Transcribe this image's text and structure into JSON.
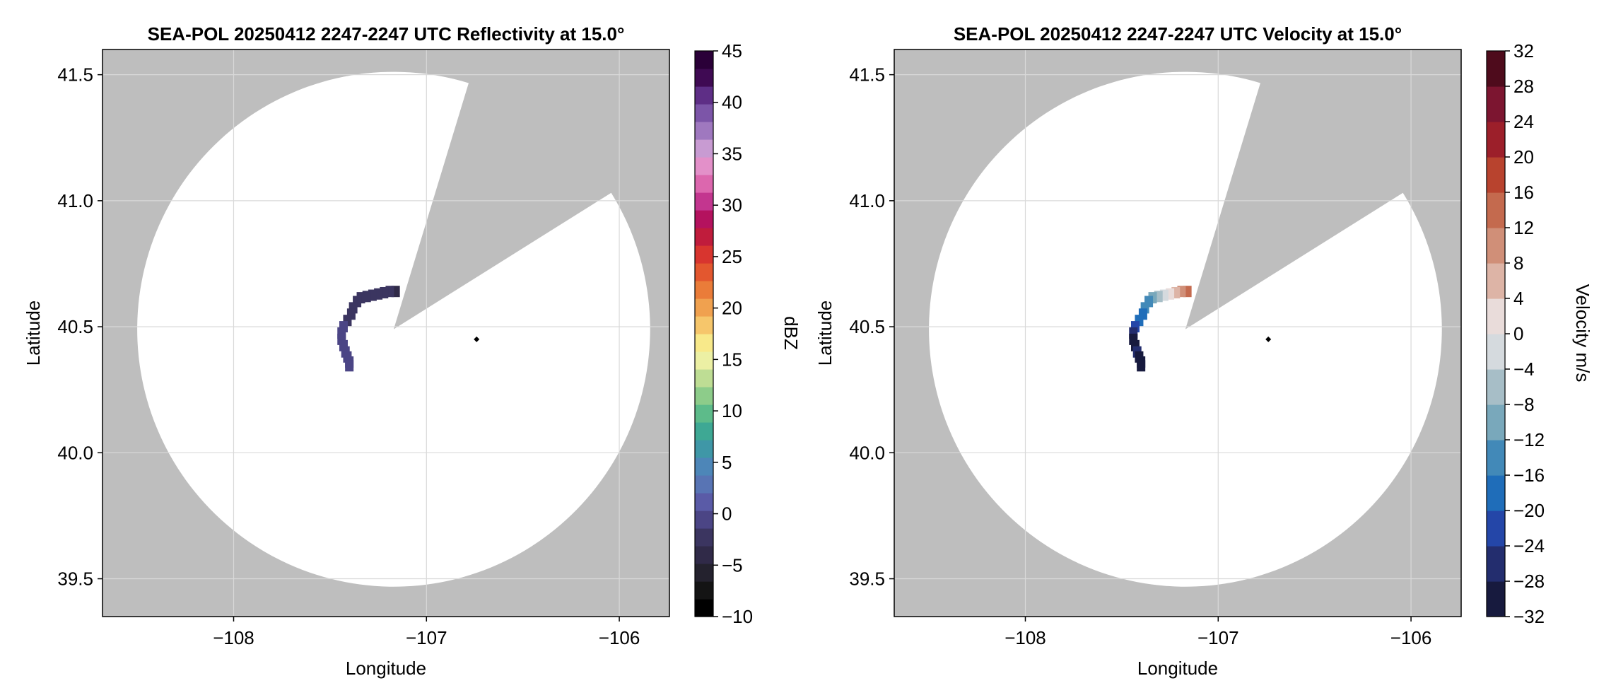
{
  "colors": {
    "missing": "#bebebe",
    "coverage": "#ffffff",
    "grid": "#d9d9d9",
    "site_marker": "#000000"
  },
  "chart_data": [
    {
      "type": "heatmap",
      "title": "SEA-POL 20250412 2247-2247 UTC Reflectivity at 15.0°",
      "xlabel": "Longitude",
      "ylabel": "Latitude",
      "xlim": [
        -108.68,
        -105.74
      ],
      "ylim": [
        39.35,
        41.6
      ],
      "xticks": [
        -108,
        -107,
        -106
      ],
      "xtick_labels": [
        "−108",
        "−107",
        "−106"
      ],
      "yticks": [
        39.5,
        40.0,
        40.5,
        41.0,
        41.5
      ],
      "ytick_labels": [
        "39.5",
        "40.0",
        "40.5",
        "41.0",
        "41.5"
      ],
      "grid": true,
      "radar_site": {
        "lon": -107.17,
        "lat": 40.49
      },
      "marker": {
        "lon": -106.74,
        "lat": 40.45
      },
      "range_radius_deg": 1.33,
      "blocked_sector_deg": [
        17,
        58
      ],
      "colorbar": {
        "label": "dBZ",
        "min": -10,
        "max": 45,
        "step": 2.5,
        "ticks": [
          -10,
          -5,
          0,
          5,
          10,
          15,
          20,
          25,
          30,
          35,
          40,
          45
        ],
        "tick_labels": [
          "−10",
          "−5",
          "0",
          "5",
          "10",
          "15",
          "20",
          "25",
          "30",
          "35",
          "40",
          "45"
        ],
        "colors": [
          "#000000",
          "#141414",
          "#24222e",
          "#302a48",
          "#3b3560",
          "#4b4585",
          "#5a5ba7",
          "#5874b4",
          "#4d86b8",
          "#3f97a7",
          "#3ea894",
          "#5dbb8a",
          "#8dcc8a",
          "#bedd94",
          "#ecf0a4",
          "#f8e98a",
          "#f6c66b",
          "#f0a14f",
          "#ea7c39",
          "#e3572f",
          "#d8352f",
          "#c01c3c",
          "#b4125e",
          "#c3368f",
          "#dc67ae",
          "#e390c9",
          "#c89bd2",
          "#9f78bf",
          "#7c55a8",
          "#5e2e86",
          "#3f0a53",
          "#2a0038"
        ]
      },
      "echo": [
        [
          -107.16,
          40.64,
          -0.5
        ],
        [
          -107.19,
          40.64,
          0.3
        ],
        [
          -107.22,
          40.635,
          0.8
        ],
        [
          -107.25,
          40.63,
          0.5
        ],
        [
          -107.28,
          40.625,
          1.0
        ],
        [
          -107.31,
          40.62,
          0.2
        ],
        [
          -107.34,
          40.615,
          0.6
        ],
        [
          -107.36,
          40.6,
          0.9
        ],
        [
          -107.38,
          40.575,
          1.4
        ],
        [
          -107.39,
          40.55,
          1.8
        ],
        [
          -107.41,
          40.525,
          2.2
        ],
        [
          -107.43,
          40.5,
          2.6
        ],
        [
          -107.44,
          40.475,
          3.0
        ],
        [
          -107.44,
          40.45,
          3.2
        ],
        [
          -107.43,
          40.425,
          3.5
        ],
        [
          -107.42,
          40.4,
          3.9
        ],
        [
          -107.41,
          40.38,
          4.3
        ],
        [
          -107.4,
          40.36,
          4.6
        ],
        [
          -107.4,
          40.345,
          4.4
        ]
      ]
    },
    {
      "type": "heatmap",
      "title": "SEA-POL 20250412 2247-2247 UTC Velocity at 15.0°",
      "xlabel": "Longitude",
      "ylabel": "Latitude",
      "xlim": [
        -108.68,
        -105.74
      ],
      "ylim": [
        39.35,
        41.6
      ],
      "xticks": [
        -108,
        -107,
        -106
      ],
      "xtick_labels": [
        "−108",
        "−107",
        "−106"
      ],
      "yticks": [
        39.5,
        40.0,
        40.5,
        41.0,
        41.5
      ],
      "ytick_labels": [
        "39.5",
        "40.0",
        "40.5",
        "41.0",
        "41.5"
      ],
      "grid": true,
      "radar_site": {
        "lon": -107.17,
        "lat": 40.49
      },
      "marker": {
        "lon": -106.74,
        "lat": 40.45
      },
      "range_radius_deg": 1.33,
      "blocked_sector_deg": [
        17,
        58
      ],
      "colorbar": {
        "label": "Velocity m/s",
        "min": -32,
        "max": 32,
        "step": 4,
        "ticks": [
          -32,
          -28,
          -24,
          -20,
          -16,
          -12,
          -8,
          -4,
          0,
          4,
          8,
          12,
          16,
          20,
          24,
          28,
          32
        ],
        "tick_labels": [
          "−32",
          "−28",
          "−24",
          "−20",
          "−16",
          "−12",
          "−8",
          "−4",
          "0",
          "4",
          "8",
          "12",
          "16",
          "20",
          "24",
          "28",
          "32"
        ],
        "colors": [
          "#171a3e",
          "#232d6e",
          "#2446a8",
          "#1f6db9",
          "#4289b8",
          "#79a8bb",
          "#a7bec7",
          "#d5dade",
          "#e9dcda",
          "#ddb4a6",
          "#d08f78",
          "#c46a4e",
          "#b8432e",
          "#9c1f2a",
          "#7c1530",
          "#4e0b1c"
        ]
      },
      "echo": [
        [
          -107.16,
          40.64,
          14
        ],
        [
          -107.19,
          40.64,
          11
        ],
        [
          -107.22,
          40.635,
          5
        ],
        [
          -107.25,
          40.63,
          1
        ],
        [
          -107.28,
          40.625,
          -3
        ],
        [
          -107.31,
          40.62,
          -8
        ],
        [
          -107.34,
          40.615,
          -10
        ],
        [
          -107.36,
          40.6,
          -13
        ],
        [
          -107.38,
          40.575,
          -15
        ],
        [
          -107.39,
          40.55,
          -17
        ],
        [
          -107.41,
          40.525,
          -19
        ],
        [
          -107.43,
          40.5,
          -22
        ],
        [
          -107.44,
          40.475,
          -27
        ],
        [
          -107.44,
          40.45,
          -29
        ],
        [
          -107.43,
          40.425,
          -30
        ],
        [
          -107.42,
          40.4,
          -28
        ],
        [
          -107.41,
          40.38,
          -30
        ],
        [
          -107.4,
          40.36,
          -31
        ],
        [
          -107.4,
          40.345,
          -29
        ]
      ]
    }
  ]
}
